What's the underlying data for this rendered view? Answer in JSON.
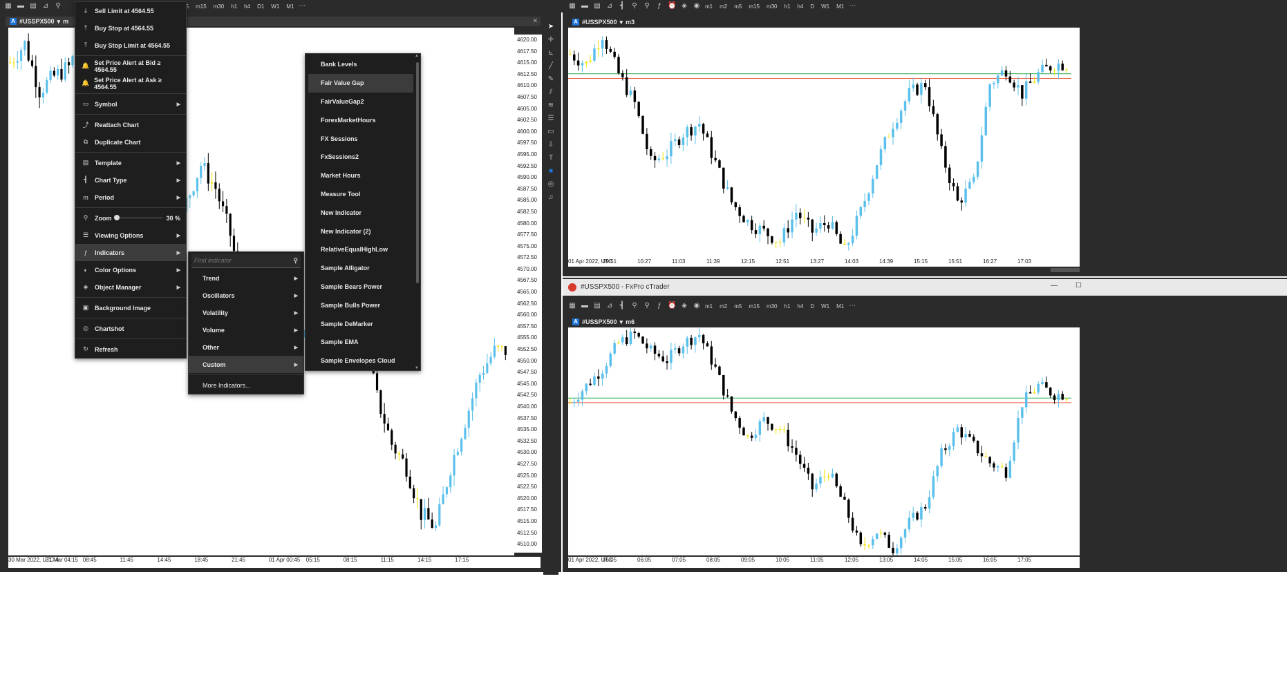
{
  "left_window": {
    "toolbar_timeframes": [
      "m5",
      "m15",
      "m30",
      "h1",
      "h4",
      "D1",
      "W1",
      "M1"
    ],
    "tab": {
      "badge": "A",
      "symbol": "#USSPX500",
      "chevron": "▾",
      "period": "m"
    },
    "price_axis": [
      "4620.00",
      "4617.50",
      "4615.00",
      "4612.50",
      "4610.00",
      "4607.50",
      "4605.00",
      "4602.50",
      "4600.00",
      "4597.50",
      "4595.00",
      "4592.50",
      "4590.00",
      "4587.50",
      "4585.00",
      "4582.50",
      "4580.00",
      "4577.50",
      "4575.00",
      "4572.50",
      "4570.00",
      "4567.50",
      "4565.00",
      "4562.50",
      "4560.00",
      "4557.50",
      "4555.00",
      "4552.50",
      "4550.00",
      "4547.50",
      "4545.00",
      "4542.50",
      "4540.00",
      "4537.50",
      "4535.00",
      "4532.50",
      "4530.00",
      "4527.50",
      "4525.00",
      "4522.50",
      "4520.00",
      "4517.50",
      "4515.00",
      "4512.50",
      "4510.00"
    ],
    "time_axis": [
      "30 Mar 2022, UTC-4",
      "31 Mar 04:15",
      "08:45",
      "11:45",
      "14:45",
      "18:45",
      "21:45",
      "01 Apr 00:45",
      "05:15",
      "08:15",
      "11:15",
      "14:15",
      "17:15"
    ],
    "time_marker": "00:00"
  },
  "context_menu": {
    "items": [
      {
        "icon": "sell-stop-limit-icon",
        "glyph": "⤓",
        "label": "Sell Limit at 4564.55",
        "arrow": false
      },
      {
        "icon": "buy-stop-icon",
        "glyph": "⤒",
        "label": "Buy Stop at 4564.55",
        "arrow": false
      },
      {
        "icon": "buy-stop-limit-icon",
        "glyph": "⤒",
        "label": "Buy Stop Limit at 4564.55",
        "arrow": false
      },
      {
        "sep": true
      },
      {
        "icon": "bell-icon",
        "glyph": "🔔",
        "label": "Set Price Alert at Bid ≥ 4564.55",
        "arrow": false
      },
      {
        "icon": "bell-icon",
        "glyph": "🔔",
        "label": "Set Price Alert at Ask ≥ 4564.55",
        "arrow": false
      },
      {
        "sep": true
      },
      {
        "icon": "symbol-icon",
        "glyph": "▭",
        "label": "Symbol",
        "arrow": true
      },
      {
        "sep": true
      },
      {
        "icon": "reattach-icon",
        "glyph": "⤴",
        "label": "Reattach Chart",
        "arrow": false
      },
      {
        "icon": "duplicate-icon",
        "glyph": "⧉",
        "label": "Duplicate Chart",
        "arrow": false
      },
      {
        "sep": true
      },
      {
        "icon": "template-icon",
        "glyph": "▤",
        "label": "Template",
        "arrow": true
      },
      {
        "icon": "chart-type-icon",
        "glyph": "┫",
        "label": "Chart Type",
        "arrow": true
      },
      {
        "icon": "period-icon",
        "glyph": "m",
        "label": "Period",
        "arrow": true
      },
      {
        "sep": true
      },
      {
        "icon": "zoom-icon",
        "glyph": "⚲",
        "label": "Zoom",
        "zoom": true
      },
      {
        "icon": "viewing-options-icon",
        "glyph": "☰",
        "label": "Viewing Options",
        "arrow": true
      },
      {
        "icon": "indicators-icon",
        "glyph": "ƒ",
        "label": "Indicators",
        "arrow": true,
        "highlight": true
      },
      {
        "icon": "color-options-icon",
        "glyph": "◐",
        "label": "Color Options",
        "arrow": true
      },
      {
        "icon": "object-manager-icon",
        "glyph": "◈",
        "label": "Object Manager",
        "arrow": true
      },
      {
        "sep": true
      },
      {
        "icon": "background-image-icon",
        "glyph": "▣",
        "label": "Background Image",
        "arrow": false
      },
      {
        "sep": true
      },
      {
        "icon": "camera-icon",
        "glyph": "◎",
        "label": "Chartshot",
        "arrow": false
      },
      {
        "sep": true
      },
      {
        "icon": "refresh-icon",
        "glyph": "↻",
        "label": "Refresh",
        "arrow": false
      }
    ],
    "zoom_value": "30 %",
    "zoom_level": 0.05
  },
  "indicators_submenu": {
    "search_placeholder": "Find indicator",
    "items": [
      {
        "label": "Trend",
        "arrow": true
      },
      {
        "label": "Oscillators",
        "arrow": true
      },
      {
        "label": "Volatility",
        "arrow": true
      },
      {
        "label": "Volume",
        "arrow": true
      },
      {
        "label": "Other",
        "arrow": true
      },
      {
        "label": "Custom",
        "arrow": true,
        "highlight": true
      }
    ],
    "more": "More Indicators..."
  },
  "custom_list": {
    "items": [
      "Bank Levels",
      "Fair Value Gap",
      "FairValueGap2",
      "ForexMarketHours",
      "FX Sessions",
      "FxSessions2",
      "Market Hours",
      "Measure Tool",
      "New Indicator",
      "New Indicator (2)",
      "RelativeEqualHighLow",
      "Sample Alligator",
      "Sample Bears Power",
      "Sample Bulls Power",
      "Sample DeMarker",
      "Sample EMA",
      "Sample Envelopes Cloud"
    ],
    "highlight_index": 1
  },
  "top_right": {
    "toolbar_timeframes": [
      "m1",
      "m2",
      "m5",
      "m15",
      "m30",
      "h1",
      "h4",
      "D",
      "W1",
      "M1"
    ],
    "tab": {
      "badge": "A",
      "symbol": "#USSPX500",
      "chevron": "▾",
      "period": "m3"
    },
    "time_axis": [
      "01 Apr 2022, UTC",
      "09:51",
      "10:27",
      "11:03",
      "11:39",
      "12:15",
      "12:51",
      "13:27",
      "14:03",
      "14:39",
      "15:15",
      "15:51",
      "16:27",
      "17:03"
    ],
    "time_marker": "00:00"
  },
  "bottom_right": {
    "title": "#USSPX500 - FxPro cTrader",
    "toolbar_timeframes": [
      "m1",
      "m2",
      "m5",
      "m15",
      "m30",
      "h1",
      "h4",
      "D",
      "W1",
      "M1"
    ],
    "tab": {
      "badge": "A",
      "symbol": "#USSPX500",
      "chevron": "▾",
      "period": "m6"
    },
    "time_axis": [
      "01 Apr 2022, UTC",
      "05:05",
      "06:05",
      "07:05",
      "08:05",
      "09:05",
      "10:05",
      "11:05",
      "12:05",
      "13:05",
      "14:05",
      "15:05",
      "16:05",
      "17:05"
    ],
    "time_marker": "00:00"
  },
  "colors": {
    "up": "#5bc0eb",
    "down": "#000000",
    "doji": "#f2e20a",
    "bid_line": "#2eaa55",
    "ask_line": "#ef5a3a",
    "accent": "#1e73d6"
  }
}
